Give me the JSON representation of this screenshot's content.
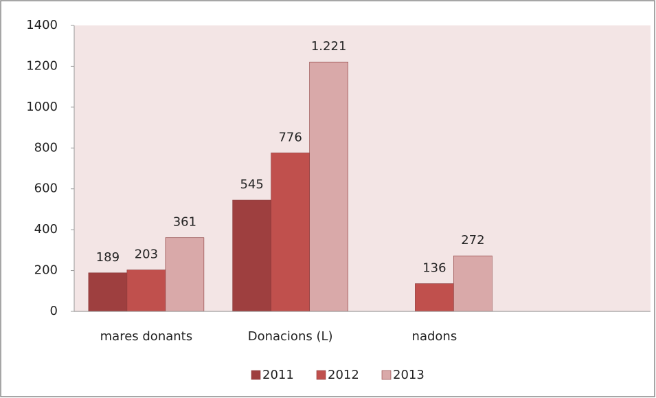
{
  "chart_data": {
    "type": "bar",
    "categories": [
      "mares  donants",
      "Donacions (L)",
      "nadons",
      null
    ],
    "series": [
      {
        "name": "2011",
        "color": "#9e3f3f",
        "values": [
          189,
          545,
          null,
          null
        ]
      },
      {
        "name": "2012",
        "color": "#c0504d",
        "values": [
          203,
          776,
          136,
          null
        ]
      },
      {
        "name": "2013",
        "color": "#d9a9a9",
        "values": [
          361,
          1221,
          272,
          null
        ],
        "value_labels": [
          "361",
          "1.221",
          "272",
          null
        ]
      }
    ],
    "ylim": [
      0,
      1400
    ],
    "yticks": [
      0,
      200,
      400,
      600,
      800,
      1000,
      1200,
      1400
    ],
    "legend": "bottom"
  }
}
